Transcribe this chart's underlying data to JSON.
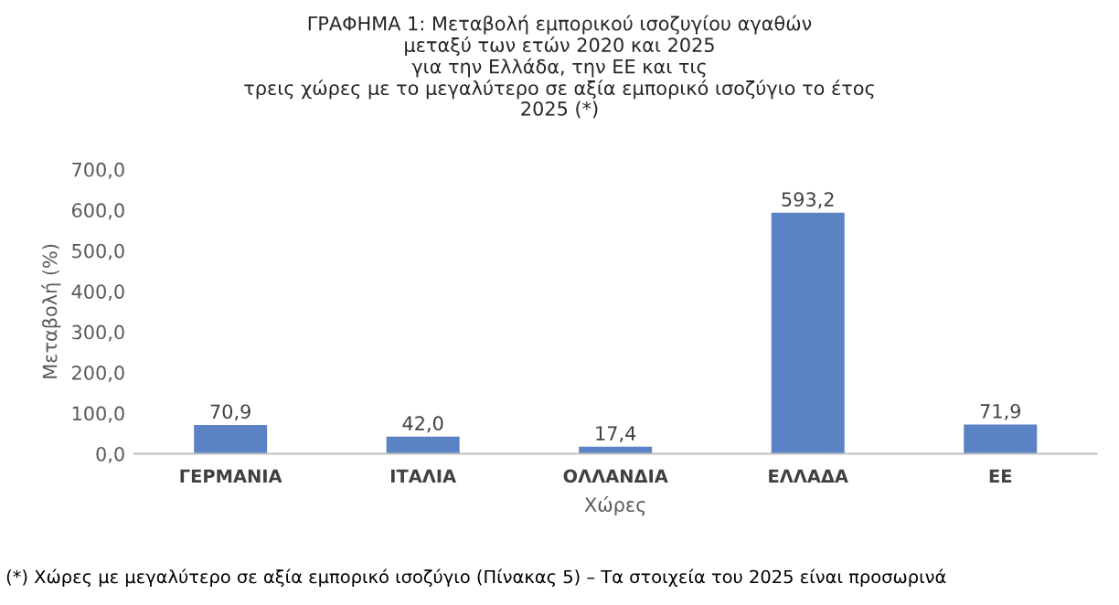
{
  "chart_data": {
    "type": "bar",
    "title": "ΓΡΑΦΗΜΑ 1: Μεταβολή εμπορικού ισοζυγίου αγαθών\nμεταξύ των ετών 2020 και 2025\nγια την Ελλάδα, την ΕΕ και τις\nτρεις χώρες με το μεγαλύτερο σε αξία εμπορικό ισοζύγιο το έτος\n2025 (*)",
    "xlabel": "Χώρες",
    "ylabel": "Μεταβολή (%)",
    "categories": [
      "ΓΕΡΜΑΝΙΑ",
      "ΙΤΑΛΙΑ",
      "ΟΛΛΑΝΔΙΑ",
      "ΕΛΛΑΔΑ",
      "ΕΕ"
    ],
    "values": [
      70.9,
      42.0,
      17.4,
      593.2,
      71.9
    ],
    "value_labels": [
      "70,9",
      "42,0",
      "17,4",
      "593,2",
      "71,9"
    ],
    "color": "#5b82c4",
    "ylim": [
      0,
      700
    ],
    "yticks": [
      {
        "value": 0,
        "label": "0,0"
      },
      {
        "value": 100,
        "label": "100,0"
      },
      {
        "value": 200,
        "label": "200,0"
      },
      {
        "value": 300,
        "label": "300,0"
      },
      {
        "value": 400,
        "label": "400,0"
      },
      {
        "value": 500,
        "label": "500,0"
      },
      {
        "value": 600,
        "label": "600,0"
      },
      {
        "value": 700,
        "label": "700,0"
      }
    ],
    "grid": false,
    "legend": false,
    "annotations": [
      "(*) Χώρες με μεγαλύτερο σε αξία εμπορικό ισοζύγιο (Πίνακας 5) – Τα στοιχεία του 2025 είναι προσωρινά"
    ]
  }
}
